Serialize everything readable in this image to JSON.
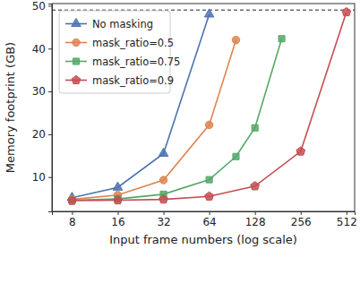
{
  "chart_data": {
    "type": "line",
    "x_label": "Input frame numbers (log scale)",
    "y_label": "Memory footprint (GB)",
    "log": "x",
    "grid": false,
    "legend": "upper left",
    "xlim": [
      5.9,
      580
    ],
    "xticks": [
      8,
      16,
      32,
      64,
      128,
      256,
      512
    ],
    "ylim": [
      2,
      50.5
    ],
    "yticks": [
      10,
      20,
      30,
      40,
      50
    ],
    "hline": 49,
    "series": [
      {
        "name": "No masking",
        "color": "#4c72b0",
        "marker": "triangle",
        "x": [
          8,
          16,
          32,
          64
        ],
        "values": [
          5.2,
          7.6,
          15.5,
          48
        ]
      },
      {
        "name": "mask_ratio=0.5",
        "color": "#dd8452",
        "marker": "circle",
        "x": [
          8,
          16,
          32,
          64,
          96
        ],
        "values": [
          4.8,
          5.8,
          9.3,
          22.2,
          42
        ]
      },
      {
        "name": "mask_ratio=0.75",
        "color": "#55a868",
        "marker": "square",
        "x": [
          8,
          16,
          32,
          64,
          96,
          128,
          192
        ],
        "values": [
          4.6,
          4.9,
          6.0,
          9.4,
          14.8,
          21.5,
          42.3
        ]
      },
      {
        "name": "mask_ratio=0.9",
        "color": "#c44e52",
        "marker": "pentagon",
        "x": [
          8,
          16,
          32,
          64,
          128,
          256,
          512
        ],
        "values": [
          4.5,
          4.6,
          4.8,
          5.5,
          7.9,
          16.0,
          48.5
        ]
      }
    ]
  }
}
